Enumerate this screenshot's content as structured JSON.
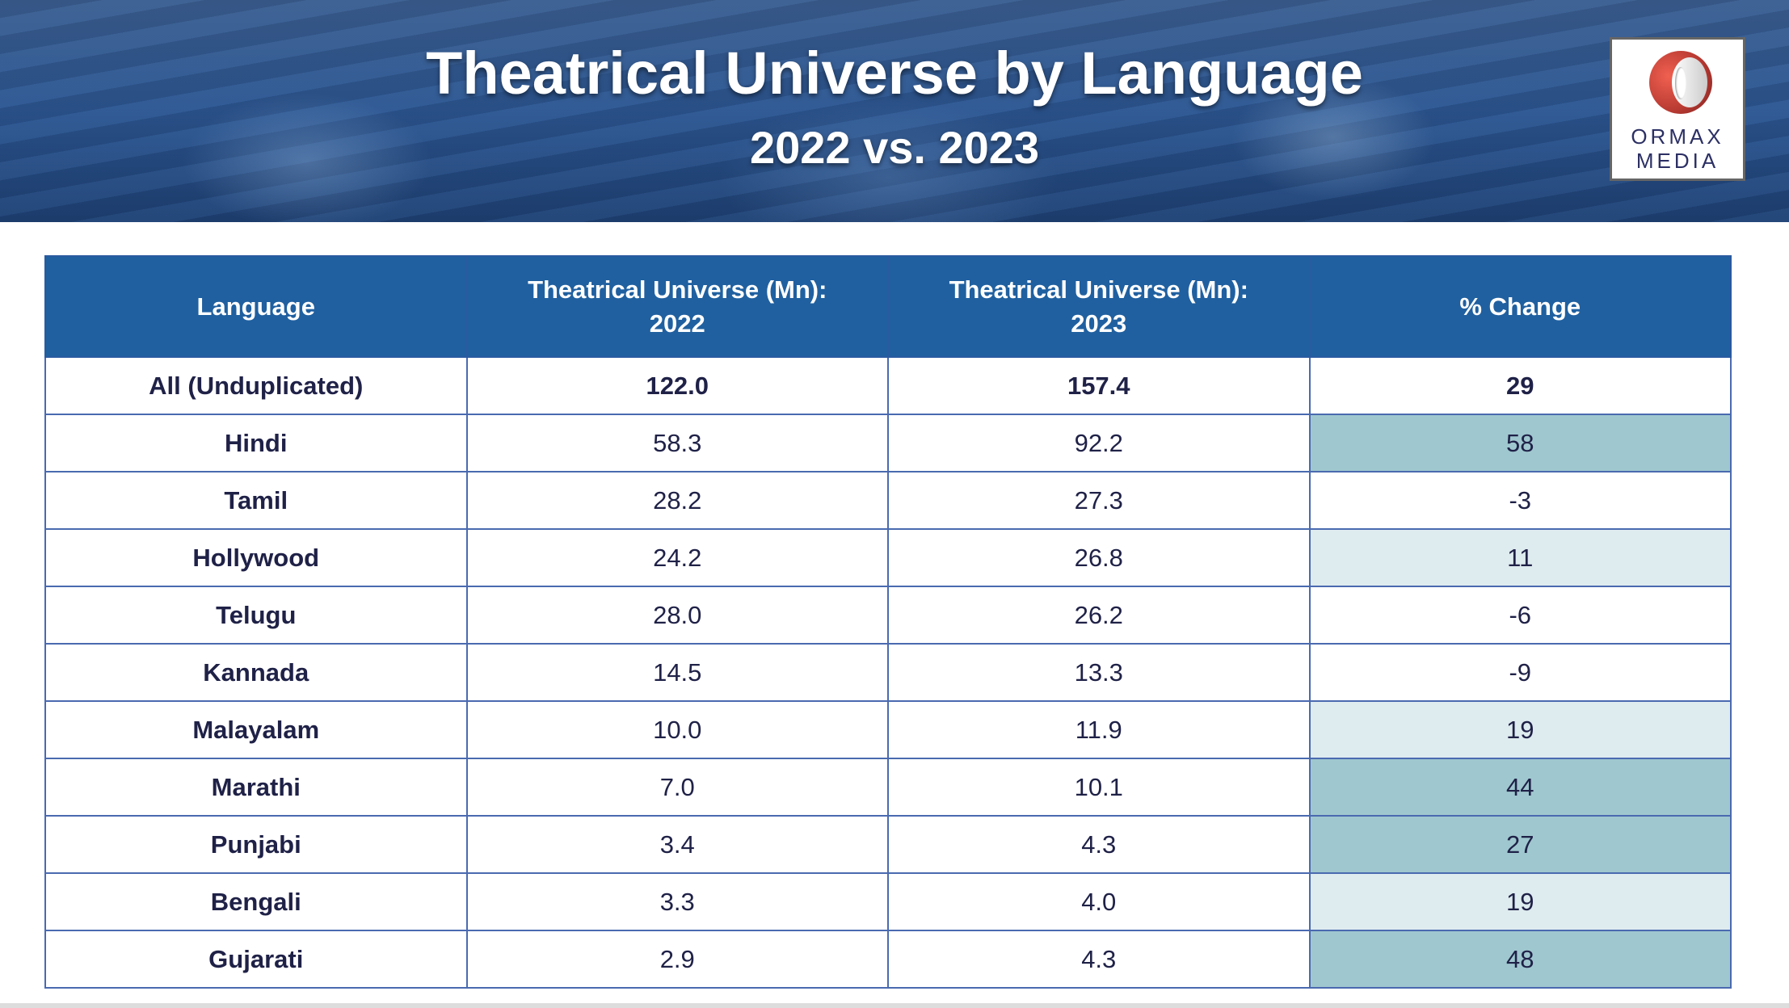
{
  "header": {
    "title": "Theatrical Universe by Language",
    "subtitle": "2022 vs. 2023"
  },
  "logo": {
    "line1": "ORMAX",
    "line2": "MEDIA"
  },
  "colors": {
    "header_bg": "#2060a0",
    "high_change": "#9fc7cf",
    "mid_change": "#deebef",
    "text": "#1f2147"
  },
  "table": {
    "columns": [
      "Language",
      "Theatrical Universe (Mn): 2022",
      "Theatrical Universe (Mn): 2023",
      "% Change"
    ],
    "col2_line1": "Theatrical Universe (Mn):",
    "col2_line2": "2022",
    "col3_line1": "Theatrical Universe (Mn):",
    "col3_line2": "2023",
    "rows": [
      {
        "language": "All (Unduplicated)",
        "y2022": "122.0",
        "y2023": "157.4",
        "change": "29",
        "shade": "none"
      },
      {
        "language": "Hindi",
        "y2022": "58.3",
        "y2023": "92.2",
        "change": "58",
        "shade": "dark"
      },
      {
        "language": "Tamil",
        "y2022": "28.2",
        "y2023": "27.3",
        "change": "-3",
        "shade": "none"
      },
      {
        "language": "Hollywood",
        "y2022": "24.2",
        "y2023": "26.8",
        "change": "11",
        "shade": "light"
      },
      {
        "language": "Telugu",
        "y2022": "28.0",
        "y2023": "26.2",
        "change": "-6",
        "shade": "none"
      },
      {
        "language": "Kannada",
        "y2022": "14.5",
        "y2023": "13.3",
        "change": "-9",
        "shade": "none"
      },
      {
        "language": "Malayalam",
        "y2022": "10.0",
        "y2023": "11.9",
        "change": "19",
        "shade": "light"
      },
      {
        "language": "Marathi",
        "y2022": "7.0",
        "y2023": "10.1",
        "change": "44",
        "shade": "dark"
      },
      {
        "language": "Punjabi",
        "y2022": "3.4",
        "y2023": "4.3",
        "change": "27",
        "shade": "dark"
      },
      {
        "language": "Bengali",
        "y2022": "3.3",
        "y2023": "4.0",
        "change": "19",
        "shade": "light"
      },
      {
        "language": "Gujarati",
        "y2022": "2.9",
        "y2023": "4.3",
        "change": "48",
        "shade": "dark"
      }
    ]
  }
}
